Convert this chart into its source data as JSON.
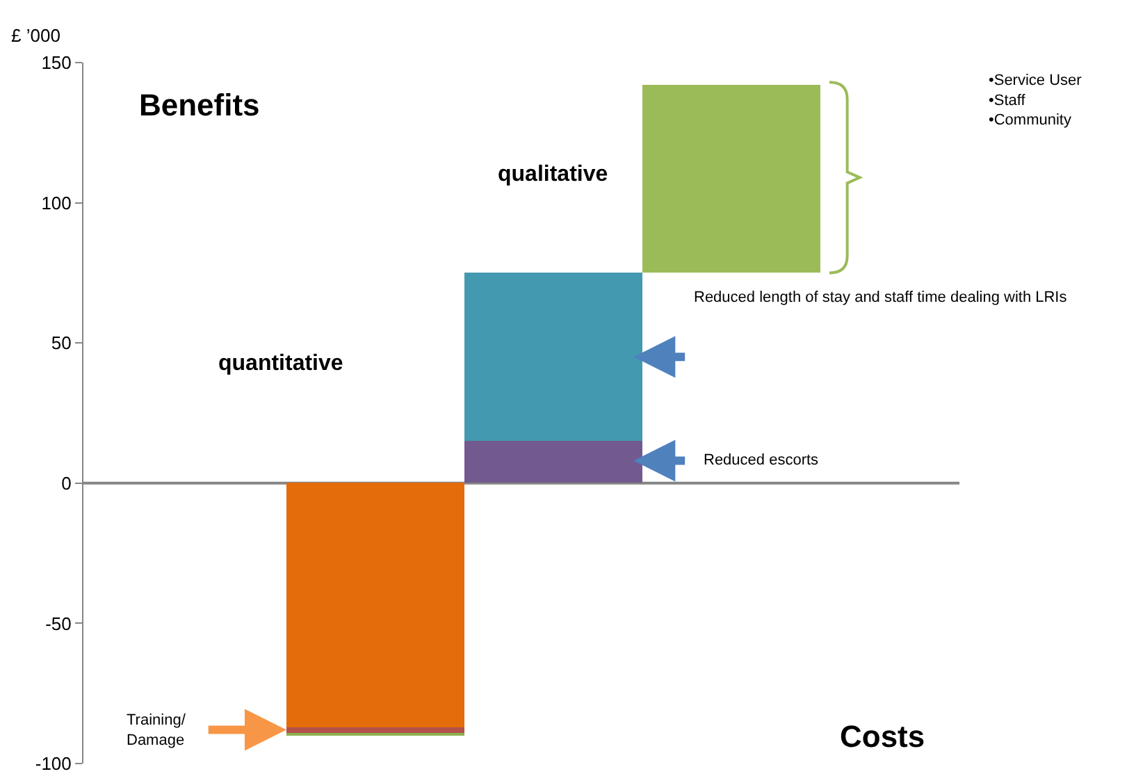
{
  "chart_data": {
    "type": "bar",
    "stacked": true,
    "ylabel": "£ ’000",
    "categories": [
      null,
      null,
      null
    ],
    "series": [
      {
        "color": "#e46c0a",
        "values": [
          -87,
          null,
          null
        ]
      },
      {
        "color": "#b3504a",
        "values": [
          -2,
          null,
          null
        ]
      },
      {
        "color": "#8db04e",
        "values": [
          -1,
          null,
          null
        ]
      },
      {
        "color": "#725a8e",
        "values": [
          null,
          15,
          null
        ]
      },
      {
        "color": "#4399b0",
        "values": [
          null,
          60,
          null
        ]
      },
      {
        "color": "#9bbb59",
        "values": [
          null,
          null,
          67
        ],
        "base": [
          null,
          null,
          75
        ]
      }
    ],
    "ylim": [
      -100,
      150
    ],
    "yticks": [
      -100,
      -50,
      0,
      50,
      100,
      150
    ],
    "grid": false,
    "ref_lines": [
      {
        "axis": "y",
        "value": 0,
        "color": "#868686"
      }
    ],
    "annotations": [
      "Benefits",
      "Costs",
      "qualitative",
      "quantitative",
      "Reduced length of stay and staff time dealing with LRIs",
      "Reduced escorts",
      "Training/\nDamage",
      "•Service User\n•Staff\n•Community"
    ]
  }
}
